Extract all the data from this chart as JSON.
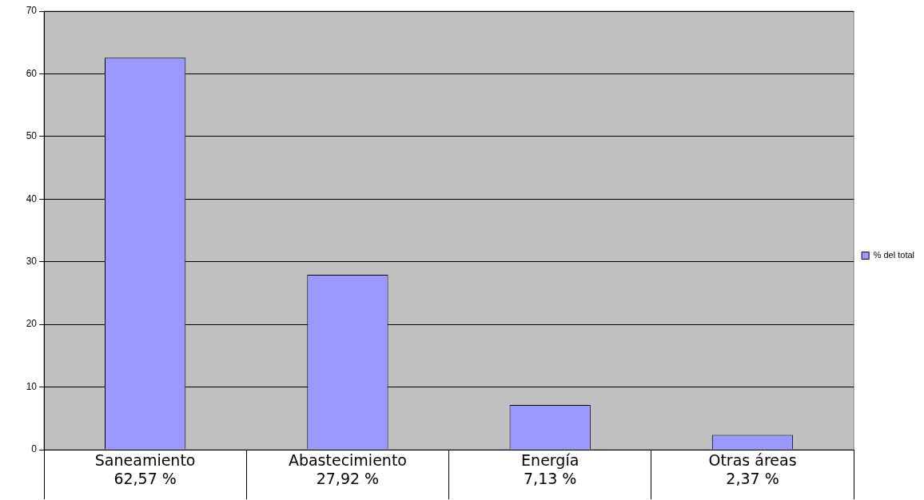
{
  "chart_data": {
    "type": "bar",
    "categories": [
      "Saneamiento",
      "Abastecimiento",
      "Energía",
      "Otras áreas"
    ],
    "series": [
      {
        "name": "% del total",
        "color": "#9999ff",
        "values": [
          62.57,
          27.92,
          7.13,
          2.37
        ],
        "value_labels": [
          "62,57 %",
          "27,92 %",
          "7,13 %",
          "2,37 %"
        ]
      }
    ],
    "ylim": [
      0,
      70
    ],
    "yticks": [
      0,
      10,
      20,
      30,
      40,
      50,
      60,
      70
    ],
    "grid": "y",
    "legend": "right"
  }
}
